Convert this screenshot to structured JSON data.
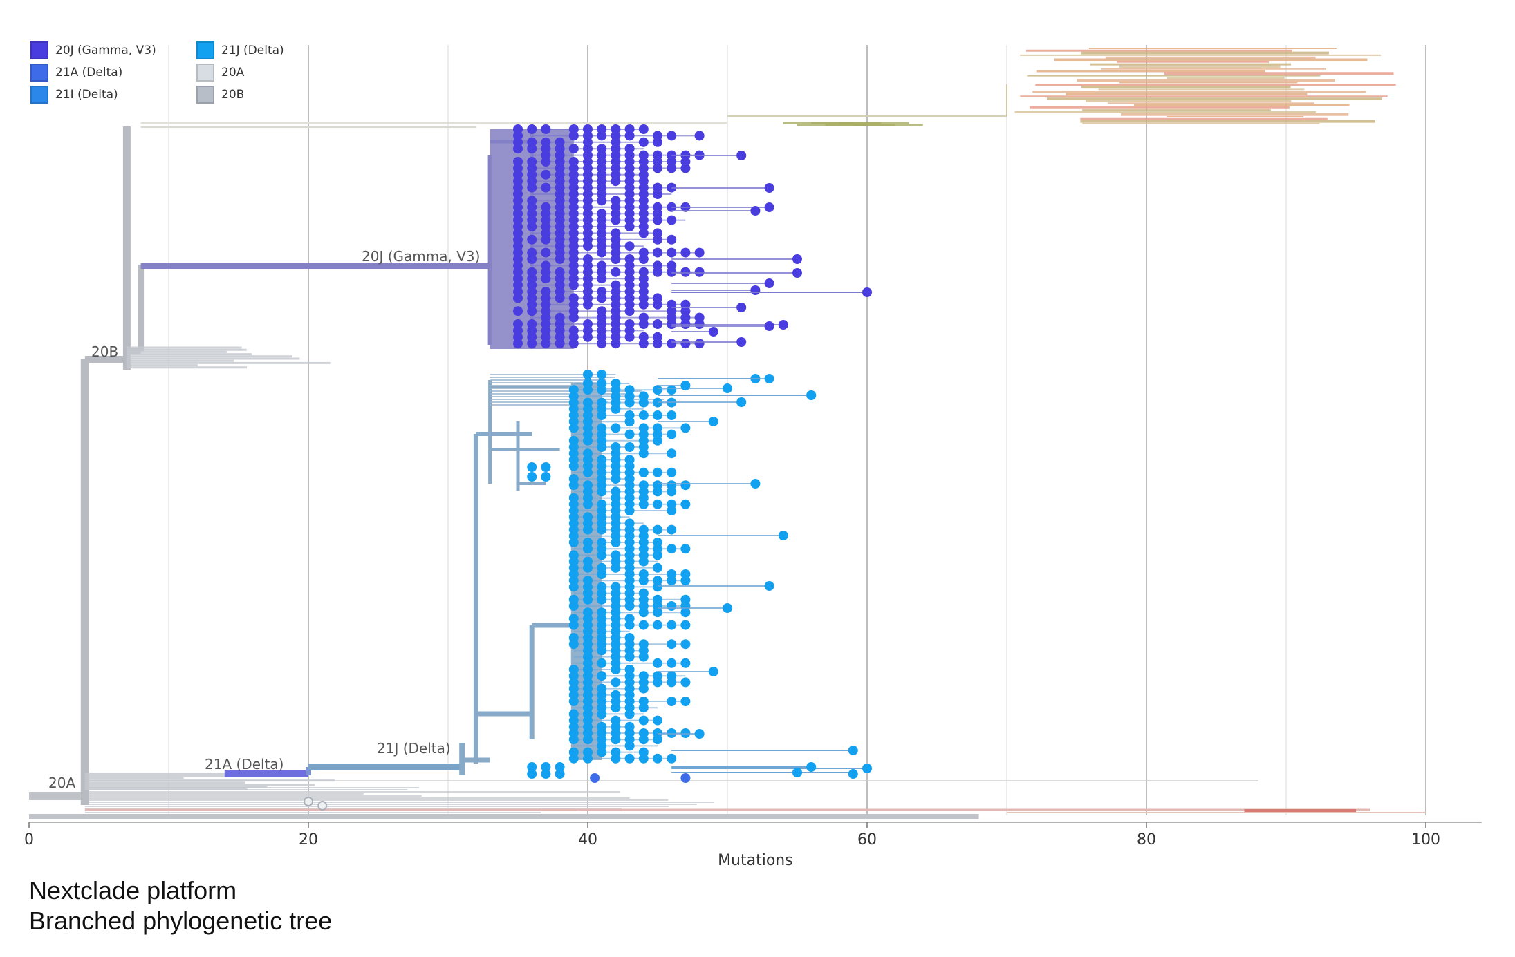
{
  "legend": {
    "items": [
      {
        "label": "20J (Gamma, V3)",
        "color": "#4a3de0"
      },
      {
        "label": "21J (Delta)",
        "color": "#12a0f0"
      },
      {
        "label": "21A (Delta)",
        "color": "#3e6ce8"
      },
      {
        "label": "20A",
        "color": "#d8dde3"
      },
      {
        "label": "21I (Delta)",
        "color": "#2b88ea"
      },
      {
        "label": "20B",
        "color": "#b7bec8"
      }
    ]
  },
  "chart_data": {
    "type": "phylogenetic-tree",
    "xlabel": "Mutations",
    "xlim": [
      0,
      104
    ],
    "xticks": [
      0,
      20,
      40,
      60,
      80,
      100
    ],
    "clade_labels": [
      {
        "label": "20J (Gamma, V3)",
        "x": 33
      },
      {
        "label": "21J (Delta)",
        "x": 31
      },
      {
        "label": "21A (Delta)",
        "x": 19
      },
      {
        "label": "20B",
        "x": 7
      },
      {
        "label": "20A",
        "x": 4
      }
    ],
    "clades": [
      {
        "name": "20J (Gamma, V3)",
        "color": "#4a3de0",
        "tips_min_mutations": 33,
        "tips_max_mutations": 60
      },
      {
        "name": "21J (Delta)",
        "color": "#12a0f0",
        "tips_min_mutations": 36,
        "tips_max_mutations": 60
      }
    ],
    "outliers": [
      {
        "clade": "20J (Gamma, V3)",
        "mutations": 60
      },
      {
        "clade": "21J (Delta)",
        "mutations": 60
      },
      {
        "clade": "21J (Delta)",
        "mutations": 59
      },
      {
        "clade": "21J (Delta)",
        "mutations": 56
      }
    ]
  },
  "caption": {
    "line1": "Nextclade platform",
    "line2": "Branched phylogenetic tree"
  }
}
